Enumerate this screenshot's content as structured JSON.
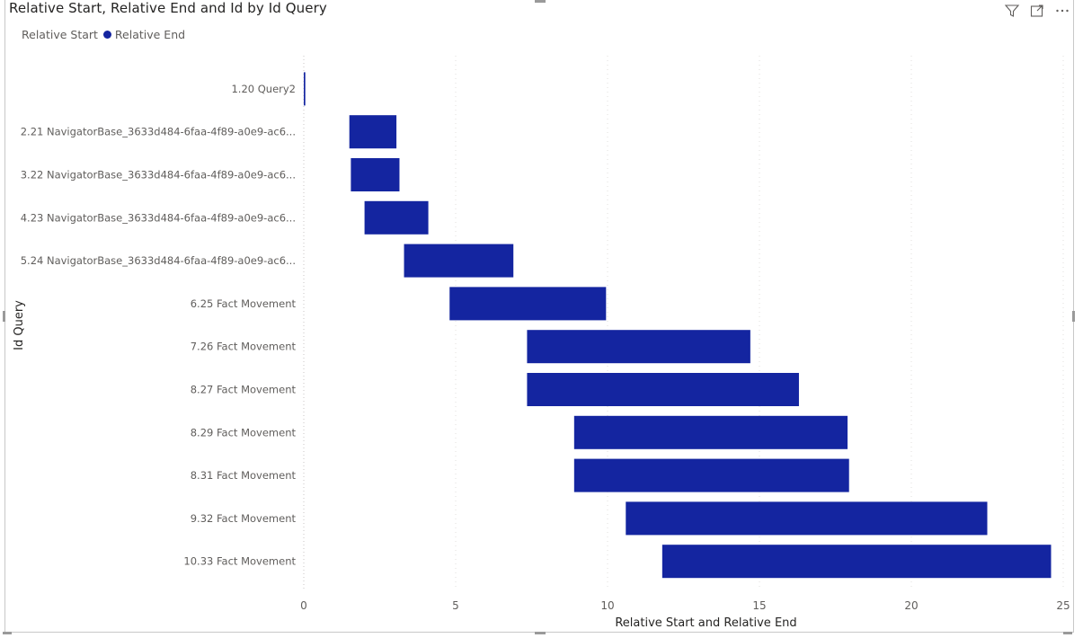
{
  "visual": {
    "title": "Relative Start, Relative End and Id by Id Query",
    "icons": [
      "filter-icon",
      "focus-mode-icon",
      "more-options-icon"
    ]
  },
  "colors": {
    "bar": "#1425a0",
    "text": "#605e5c",
    "grid": "#e1dfdd",
    "baseline": "#c8c6c4"
  },
  "chart_data": {
    "type": "bar",
    "orientation": "horizontal",
    "title": "Relative Start, Relative End and Id by Id Query",
    "xlabel": "Relative Start and Relative End",
    "ylabel": "Id Query",
    "xlim": [
      0,
      25
    ],
    "xticks": [
      0,
      5,
      10,
      15,
      20,
      25
    ],
    "grid": true,
    "legend": {
      "placement": "top-left",
      "entries": [
        {
          "name": "Relative Start",
          "marker": false
        },
        {
          "name": "Relative End",
          "marker": true,
          "color": "#1425a0"
        }
      ]
    },
    "categories": [
      "1.20 Query2",
      "2.21 NavigatorBase_3633d484-6faa-4f89-a0e9-ac6...",
      "3.22 NavigatorBase_3633d484-6faa-4f89-a0e9-ac6...",
      "4.23 NavigatorBase_3633d484-6faa-4f89-a0e9-ac6...",
      "5.24 NavigatorBase_3633d484-6faa-4f89-a0e9-ac6...",
      "6.25 Fact Movement",
      "7.26 Fact Movement",
      "8.27 Fact Movement",
      "8.29 Fact Movement",
      "8.31 Fact Movement",
      "9.32 Fact Movement",
      "10.33 Fact Movement"
    ],
    "series": [
      {
        "name": "Relative Start",
        "values": [
          0.0,
          1.5,
          1.55,
          2.0,
          3.3,
          4.8,
          7.35,
          7.35,
          8.9,
          8.9,
          10.6,
          11.8
        ]
      },
      {
        "name": "Relative End",
        "values": [
          0.05,
          3.05,
          3.15,
          4.1,
          6.9,
          9.95,
          14.7,
          16.3,
          17.9,
          17.95,
          22.5,
          24.6
        ]
      }
    ]
  }
}
